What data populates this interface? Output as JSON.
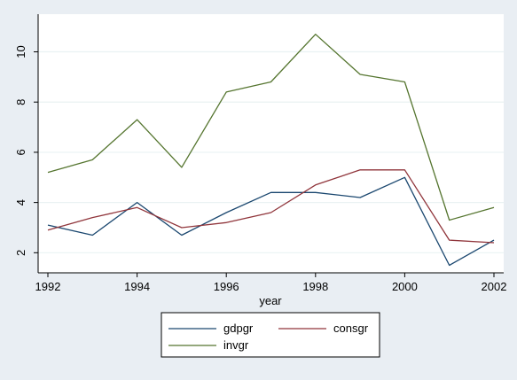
{
  "chart_data": {
    "type": "line",
    "xlabel": "year",
    "ylabel": "",
    "xlim": [
      1992,
      2002
    ],
    "ylim": [
      1.2,
      11.5
    ],
    "x_ticks": [
      1992,
      1994,
      1996,
      1998,
      2000,
      2002
    ],
    "y_ticks": [
      2,
      4,
      6,
      8,
      10
    ],
    "grid": true,
    "legend_position": "bottom",
    "x": [
      1992,
      1993,
      1994,
      1995,
      1996,
      1997,
      1998,
      1999,
      2000,
      2001,
      2002
    ],
    "series": [
      {
        "name": "gdpgr",
        "color": "#1a476f",
        "values": [
          3.1,
          2.7,
          4.0,
          2.7,
          3.6,
          4.4,
          4.4,
          4.2,
          5.0,
          1.5,
          2.5
        ]
      },
      {
        "name": "consgr",
        "color": "#90353b",
        "values": [
          2.9,
          3.4,
          3.8,
          3.0,
          3.2,
          3.6,
          4.7,
          5.3,
          5.3,
          2.5,
          2.4
        ]
      },
      {
        "name": "invgr",
        "color": "#55752f",
        "values": [
          5.2,
          5.7,
          7.3,
          5.4,
          8.4,
          8.8,
          10.7,
          9.1,
          8.8,
          3.3,
          3.8
        ]
      }
    ]
  }
}
